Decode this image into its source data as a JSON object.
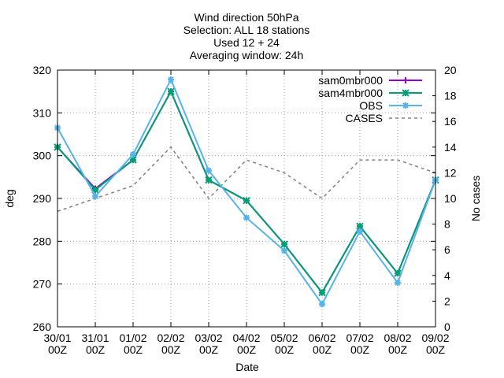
{
  "chart_data": {
    "type": "line",
    "title_lines": [
      "Wind direction 50hPa",
      "Selection: ALL     18 stations",
      "Used 12 + 24",
      "Averaging window: 24h"
    ],
    "xlabel": "Date",
    "ylabel": "deg",
    "y2label": "No cases",
    "x_tick_labels": [
      [
        "30/01",
        "00Z"
      ],
      [
        "31/01",
        "00Z"
      ],
      [
        "01/02",
        "00Z"
      ],
      [
        "02/02",
        "00Z"
      ],
      [
        "03/02",
        "00Z"
      ],
      [
        "04/02",
        "00Z"
      ],
      [
        "05/02",
        "00Z"
      ],
      [
        "06/02",
        "00Z"
      ],
      [
        "07/02",
        "00Z"
      ],
      [
        "08/02",
        "00Z"
      ],
      [
        "09/02",
        "00Z"
      ]
    ],
    "ylim": [
      260,
      320
    ],
    "yticks": [
      260,
      270,
      280,
      290,
      300,
      310,
      320
    ],
    "y2lim": [
      0,
      20
    ],
    "y2ticks": [
      0,
      2,
      4,
      6,
      8,
      10,
      12,
      14,
      16,
      18,
      20
    ],
    "grid": true,
    "legend_position": "top-right",
    "series": [
      {
        "name": "sam0mbr000",
        "axis": "y",
        "color": "#9400d3",
        "marker": "plus",
        "dash": "",
        "values": [
          302,
          292.3,
          299,
          315,
          294.3,
          289.5,
          279.3,
          268,
          283.5,
          272.5,
          294.3
        ]
      },
      {
        "name": "sam4mbr000",
        "axis": "y",
        "color": "#009e73",
        "marker": "x",
        "dash": "",
        "values": [
          302,
          292,
          299,
          315,
          294.3,
          289.5,
          279.3,
          268,
          283.5,
          272.5,
          294.3
        ]
      },
      {
        "name": "OBS",
        "axis": "y",
        "color": "#56b4e9",
        "marker": "star",
        "dash": "",
        "values": [
          306.5,
          290.5,
          300.3,
          317.8,
          296.5,
          285.5,
          277.8,
          265.3,
          282.3,
          270.3,
          294.3
        ]
      },
      {
        "name": "CASES",
        "axis": "y2",
        "color": "#808080",
        "marker": "",
        "dash": "4,4",
        "values": [
          9,
          10,
          11,
          14,
          10,
          13,
          12,
          10,
          13,
          13,
          12
        ]
      }
    ]
  }
}
